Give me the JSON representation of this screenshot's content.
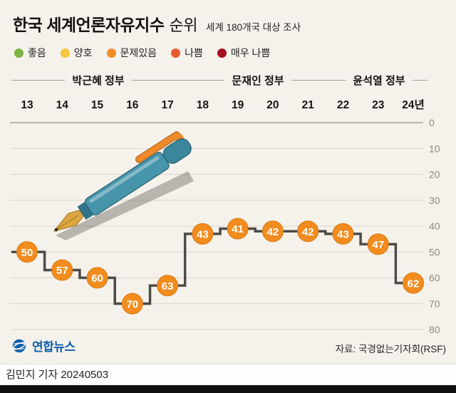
{
  "header": {
    "title_bold": "한국 세계언론자유지수",
    "title_regular": "순위",
    "subtitle": "세계 180개국 대상 조사"
  },
  "legend": [
    {
      "label": "좋음",
      "color": "#7cb342"
    },
    {
      "label": "양호",
      "color": "#f3c73b"
    },
    {
      "label": "문제있음",
      "color": "#f28c28"
    },
    {
      "label": "나쁨",
      "color": "#e65c2e"
    },
    {
      "label": "매우 나쁨",
      "color": "#a50f23"
    }
  ],
  "governments": [
    {
      "label": "박근혜 정부"
    },
    {
      "label": "문재인 정부"
    },
    {
      "label": "윤석열 정부"
    }
  ],
  "chart_data": {
    "type": "line",
    "style": "step",
    "title": "한국 세계언론자유지수 순위",
    "x_labels": [
      "13",
      "14",
      "15",
      "16",
      "17",
      "18",
      "19",
      "20",
      "21",
      "22",
      "23",
      "24년"
    ],
    "values": [
      50,
      57,
      60,
      70,
      63,
      43,
      41,
      42,
      42,
      43,
      47,
      62
    ],
    "y_axis_ticks": [
      0,
      10,
      20,
      30,
      40,
      50,
      60,
      70,
      80
    ],
    "y_inverted": true,
    "ylim": [
      0,
      80
    ],
    "grid": true,
    "marker_color": "#f28c1e",
    "marker_stroke": "#d97b14",
    "line_color": "#4d4b48"
  },
  "footer": {
    "logo_text": "연합뉴스",
    "source": "자료: 국경없는기자회(RSF)",
    "byline": "김민지 기자 20240503"
  }
}
